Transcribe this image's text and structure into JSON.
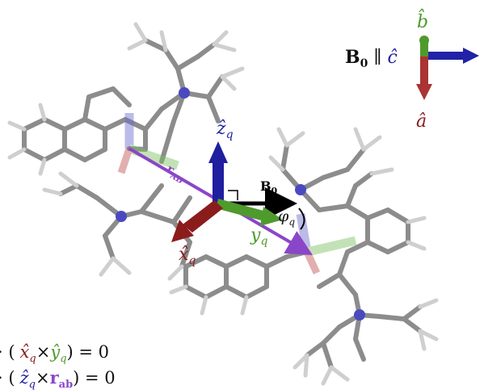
{
  "frame_axes": {
    "b_label": "b̂",
    "c_label": "ĉ",
    "a_label": "â",
    "b0_label": "B",
    "b0_sub": "0",
    "parallel": " ∥ "
  },
  "vectors": {
    "zq": "ẑ",
    "zq_sub": "q",
    "xq": "x̂",
    "xq_sub": "q",
    "yq": "y",
    "yq_sub": "q",
    "b0": "B",
    "b0_sub": "0",
    "phi": "φ",
    "phi_sub": "q",
    "rab": "r",
    "rab_sub": "AB"
  },
  "equations": {
    "eq1_prefix": "· (",
    "eq1_xq": "x̂",
    "eq1_xq_sub": "q",
    "eq1_times": "×",
    "eq1_yq": "ŷ",
    "eq1_yq_sub": "q",
    "eq1_suffix": ") = 0",
    "eq2_prefix": "· (",
    "eq2_zq": "ẑ",
    "eq2_zq_sub": "q",
    "eq2_times": "×",
    "eq2_rab": "r",
    "eq2_rab_sub": "ab",
    "eq2_suffix": ") = 0"
  },
  "colors": {
    "red": "#8b1c1c",
    "green": "#4f9a2c",
    "blue": "#1f1fa0",
    "purple": "#8a46c8",
    "black": "#000000",
    "carbon": "#8c8c8c",
    "hydrogen": "#c8c8c8",
    "nitrogen": "#4a4ac0"
  }
}
